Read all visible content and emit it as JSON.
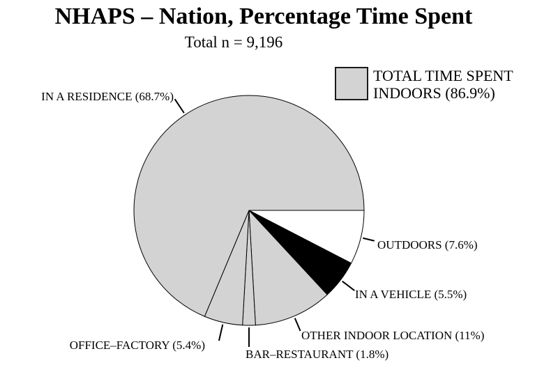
{
  "chart_data": {
    "type": "pie",
    "title": "NHAPS – Nation, Percentage Time Spent",
    "subtitle": "Total n = 9,196",
    "total_n": "9,196",
    "start_angle_deg": 0,
    "direction": "clockwise",
    "outline_color": "#000000",
    "background_color": "#ffffff",
    "legend": {
      "position": "top-right",
      "swatch_color": "#d3d3d3",
      "label_lines": [
        "TOTAL TIME SPENT",
        "INDOORS (86.9%)"
      ],
      "label": "TOTAL TIME SPENT INDOORS (86.9%)"
    },
    "slices": [
      {
        "name": "OUTDOORS",
        "value": 7.6,
        "label_text": "OUTDOORS (7.6%)",
        "color": "#ffffff"
      },
      {
        "name": "IN A VEHICLE",
        "value": 5.5,
        "label_text": "IN A VEHICLE (5.5%)",
        "color": "#000000"
      },
      {
        "name": "OTHER INDOOR LOCATION",
        "value": 11,
        "label_text": "OTHER INDOOR LOCATION (11%)",
        "color": "#d3d3d3"
      },
      {
        "name": "BAR–RESTAURANT",
        "value": 1.8,
        "label_text": "BAR–RESTAURANT (1.8%)",
        "color": "#d3d3d3"
      },
      {
        "name": "OFFICE–FACTORY",
        "value": 5.4,
        "label_text": "OFFICE–FACTORY (5.4%)",
        "color": "#d3d3d3"
      },
      {
        "name": "IN A RESIDENCE",
        "value": 68.7,
        "label_text": "IN A RESIDENCE (68.7%)",
        "color": "#d3d3d3"
      }
    ]
  }
}
